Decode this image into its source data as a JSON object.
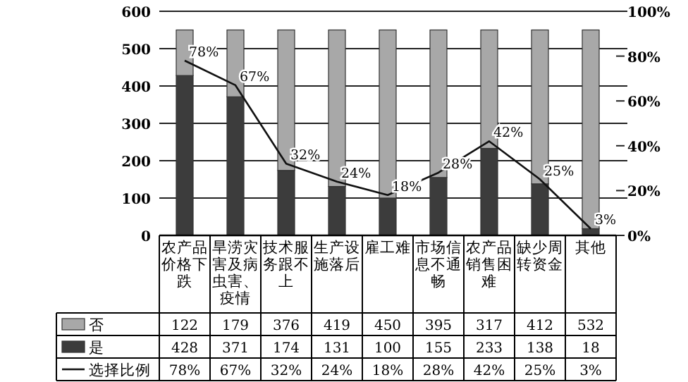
{
  "chart_data": {
    "type": "bar",
    "stacked": true,
    "categories": [
      "农产品价格下跌",
      "旱涝灾害及病虫害、疫情",
      "技术服务跟不上",
      "生产设施落后",
      "雇工难",
      "市场信息不通畅",
      "农产品销售困难",
      "缺少周转资金",
      "其他"
    ],
    "series": [
      {
        "name": "是",
        "color": "#3c3c3c",
        "values": [
          428,
          371,
          174,
          131,
          100,
          155,
          233,
          138,
          18
        ],
        "value_labels": [
          "428",
          "371",
          "174",
          "131",
          "100",
          "155",
          "233",
          "138",
          "18"
        ]
      },
      {
        "name": "否",
        "color": "#a8a8a8",
        "values": [
          122,
          179,
          376,
          419,
          450,
          395,
          317,
          412,
          532
        ],
        "value_labels": [
          "122",
          "179",
          "376",
          "419",
          "450",
          "395",
          "317",
          "412",
          "532"
        ]
      },
      {
        "name": "选择比例",
        "type": "line",
        "axis": "y2",
        "color": "#111111",
        "marker": "none",
        "values": [
          78,
          67,
          32,
          24,
          18,
          28,
          42,
          25,
          3
        ],
        "value_labels": [
          "78%",
          "67%",
          "32%",
          "24%",
          "18%",
          "28%",
          "42%",
          "25%",
          "3%"
        ]
      }
    ],
    "ylim": [
      0,
      600
    ],
    "yticks": [
      0,
      100,
      200,
      300,
      400,
      500,
      600
    ],
    "y2lim": [
      0,
      100
    ],
    "y2ticks": [
      {
        "value": 0,
        "label": "0%"
      },
      {
        "value": 20,
        "label": "20%"
      },
      {
        "value": 40,
        "label": "40%"
      },
      {
        "value": 60,
        "label": "60%"
      },
      {
        "value": 80,
        "label": "80%"
      },
      {
        "value": 100,
        "label": "100%"
      }
    ],
    "grid": "y",
    "legend": "bottom"
  }
}
